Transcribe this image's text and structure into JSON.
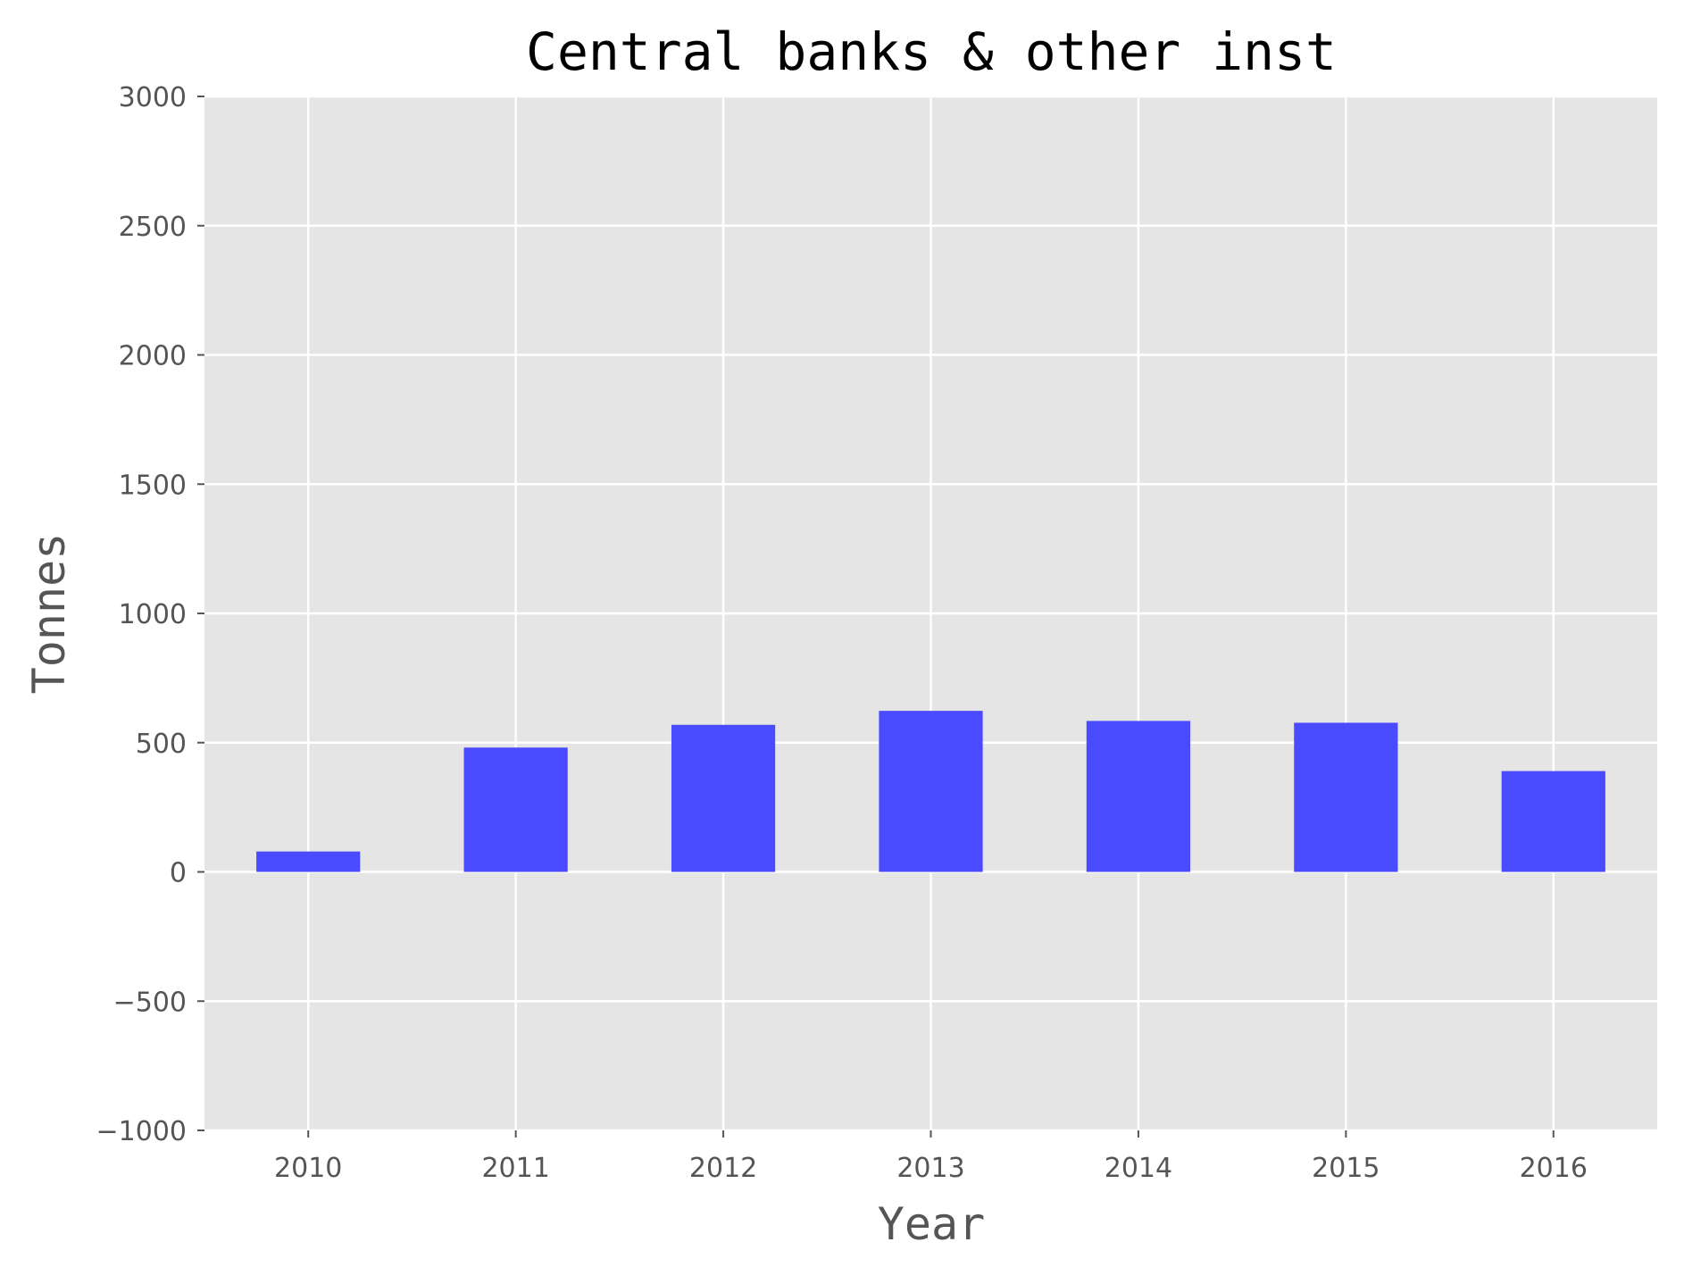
{
  "chart_data": {
    "type": "bar",
    "title": "Central banks & other inst",
    "xlabel": "Year",
    "ylabel": "Tonnes",
    "categories": [
      "2010",
      "2011",
      "2012",
      "2013",
      "2014",
      "2015",
      "2016"
    ],
    "values": [
      79,
      481,
      569,
      623,
      584,
      577,
      390
    ],
    "ylim": [
      -1000,
      3000
    ],
    "yticks": [
      -1000,
      -500,
      0,
      500,
      1000,
      1500,
      2000,
      2500,
      3000
    ],
    "ytick_labels": [
      "−1000",
      "−500",
      "0",
      "500",
      "1000",
      "1500",
      "2000",
      "2500",
      "3000"
    ],
    "grid": true,
    "legend": "none",
    "colors": {
      "bar": "#4a4aff",
      "plot_background": "#e5e5e5",
      "grid": "#ffffff",
      "tick_text": "#555555",
      "title_text": "#000000"
    }
  }
}
